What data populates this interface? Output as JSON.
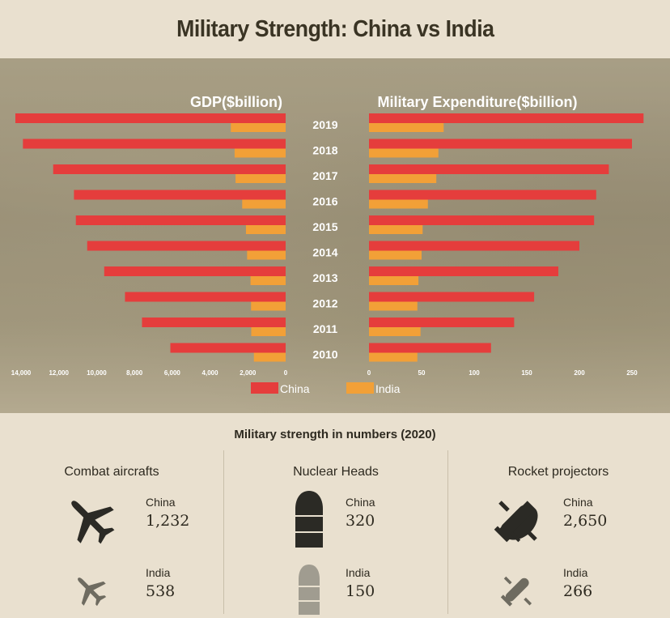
{
  "title": "Military Strength: China vs India",
  "colors": {
    "china": "#e53d3c",
    "india": "#f2a037",
    "dark_icon": "#2b2a25",
    "light_icon": "#6e6b60"
  },
  "chart_data": [
    {
      "type": "bar",
      "orientation": "horizontal",
      "title": "GDP($billion)",
      "categories": [
        "2019",
        "2018",
        "2017",
        "2016",
        "2015",
        "2014",
        "2013",
        "2012",
        "2011",
        "2010"
      ],
      "series": [
        {
          "name": "China",
          "values": [
            14300,
            13900,
            12300,
            11200,
            11100,
            10500,
            9600,
            8500,
            7600,
            6100
          ]
        },
        {
          "name": "India",
          "values": [
            2900,
            2700,
            2650,
            2300,
            2100,
            2040,
            1860,
            1830,
            1820,
            1680
          ]
        }
      ],
      "xlim": [
        0,
        14000
      ],
      "reversed_axis": true,
      "ticks": [
        14000,
        12000,
        10000,
        8000,
        6000,
        4000,
        2000,
        0
      ],
      "tick_labels": [
        "14,000",
        "12,000",
        "10,000",
        "8,000",
        "6,000",
        "4,000",
        "2,000",
        "0"
      ]
    },
    {
      "type": "bar",
      "orientation": "horizontal",
      "title": "Military Expenditure($billion)",
      "categories": [
        "2019",
        "2018",
        "2017",
        "2016",
        "2015",
        "2014",
        "2013",
        "2012",
        "2011",
        "2010"
      ],
      "series": [
        {
          "name": "China",
          "values": [
            261,
            250,
            228,
            216,
            214,
            200,
            180,
            157,
            138,
            116
          ]
        },
        {
          "name": "India",
          "values": [
            71,
            66,
            64,
            56,
            51,
            50,
            47,
            46,
            49,
            46
          ]
        }
      ],
      "xlim": [
        0,
        250
      ],
      "ticks": [
        0,
        50,
        100,
        150,
        200,
        250
      ],
      "tick_labels": [
        "0",
        "50",
        "100",
        "150",
        "200",
        "250"
      ]
    }
  ],
  "legend": {
    "china": "China",
    "india": "India"
  },
  "stats": {
    "heading": "Military strength in numbers (2020)",
    "columns": [
      {
        "title": "Combat aircrafts",
        "icon": "airplane-icon",
        "china_label": "China",
        "china_value": "1,232",
        "india_label": "India",
        "india_value": "538"
      },
      {
        "title": "Nuclear Heads",
        "icon": "warhead-icon",
        "china_label": "China",
        "china_value": "320",
        "india_label": "India",
        "india_value": "150"
      },
      {
        "title": "Rocket projectors",
        "icon": "rocket-icon",
        "china_label": "China",
        "china_value": "2,650",
        "india_label": "India",
        "india_value": "266"
      }
    ]
  }
}
